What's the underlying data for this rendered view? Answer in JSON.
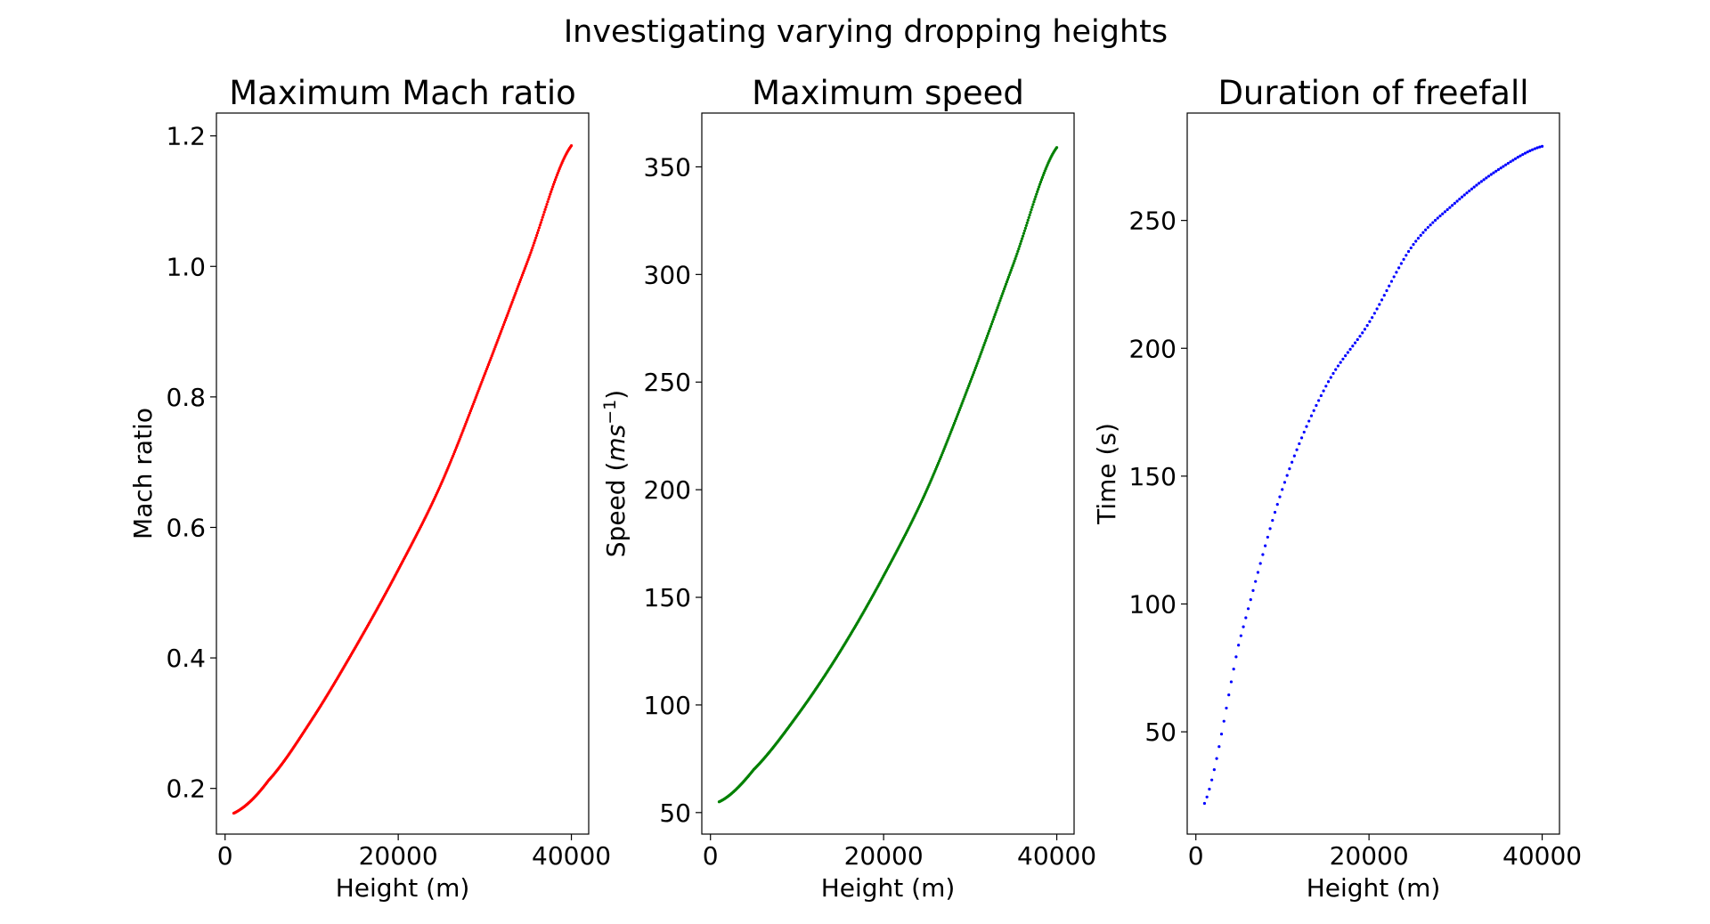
{
  "figure": {
    "suptitle": "Investigating varying dropping heights"
  },
  "chart_data": [
    {
      "type": "scatter",
      "title": "Maximum Mach ratio",
      "xlabel": "Height (m)",
      "ylabel": "Mach ratio",
      "xlim": [
        -1000,
        42000
      ],
      "ylim": [
        0.13,
        1.235
      ],
      "xticks": [
        0,
        20000,
        40000
      ],
      "xtick_labels": [
        "0",
        "20000",
        "40000"
      ],
      "yticks": [
        0.2,
        0.4,
        0.6,
        0.8,
        1.0,
        1.2
      ],
      "ytick_labels": [
        "0.2",
        "0.4",
        "0.6",
        "0.8",
        "1.0",
        "1.2"
      ],
      "grid": false,
      "series": [
        {
          "color": "#ff0000",
          "x": [
            1000,
            5000,
            10000,
            15000,
            20000,
            25000,
            30000,
            35000,
            40000
          ],
          "y": [
            0.162,
            0.212,
            0.305,
            0.415,
            0.535,
            0.668,
            0.835,
            1.01,
            1.185
          ]
        }
      ]
    },
    {
      "type": "scatter",
      "title": "Maximum speed",
      "xlabel": "Height (m)",
      "ylabel": "Speed (ms⁻¹)",
      "xlim": [
        -1000,
        42000
      ],
      "ylim": [
        40,
        375
      ],
      "xticks": [
        0,
        20000,
        40000
      ],
      "xtick_labels": [
        "0",
        "20000",
        "40000"
      ],
      "yticks": [
        50,
        100,
        150,
        200,
        250,
        300,
        350
      ],
      "ytick_labels": [
        "50",
        "100",
        "150",
        "200",
        "250",
        "300",
        "350"
      ],
      "grid": false,
      "series": [
        {
          "color": "#008000",
          "x": [
            1000,
            5000,
            10000,
            15000,
            20000,
            25000,
            30000,
            35000,
            40000
          ],
          "y": [
            55,
            70,
            95,
            125,
            160,
            200,
            250,
            305,
            359
          ]
        }
      ]
    },
    {
      "type": "scatter",
      "title": "Duration of freefall",
      "xlabel": "Height (m)",
      "ylabel": "Time (s)",
      "xlim": [
        -1000,
        42000
      ],
      "ylim": [
        10,
        292
      ],
      "xticks": [
        0,
        20000,
        40000
      ],
      "xtick_labels": [
        "0",
        "20000",
        "40000"
      ],
      "yticks": [
        50,
        100,
        150,
        200,
        250
      ],
      "ytick_labels": [
        "50",
        "100",
        "150",
        "200",
        "250"
      ],
      "grid": false,
      "series": [
        {
          "color": "#0000ff",
          "x": [
            1000,
            5000,
            10000,
            15000,
            20000,
            25000,
            30000,
            35000,
            40000
          ],
          "y": [
            22,
            85,
            145,
            185,
            210,
            240,
            257,
            270,
            279
          ]
        }
      ]
    }
  ],
  "ylabel_parts": [
    null,
    {
      "base": "Speed (",
      "italic": "ms",
      "sup": "−1",
      "end": ")"
    },
    null
  ]
}
